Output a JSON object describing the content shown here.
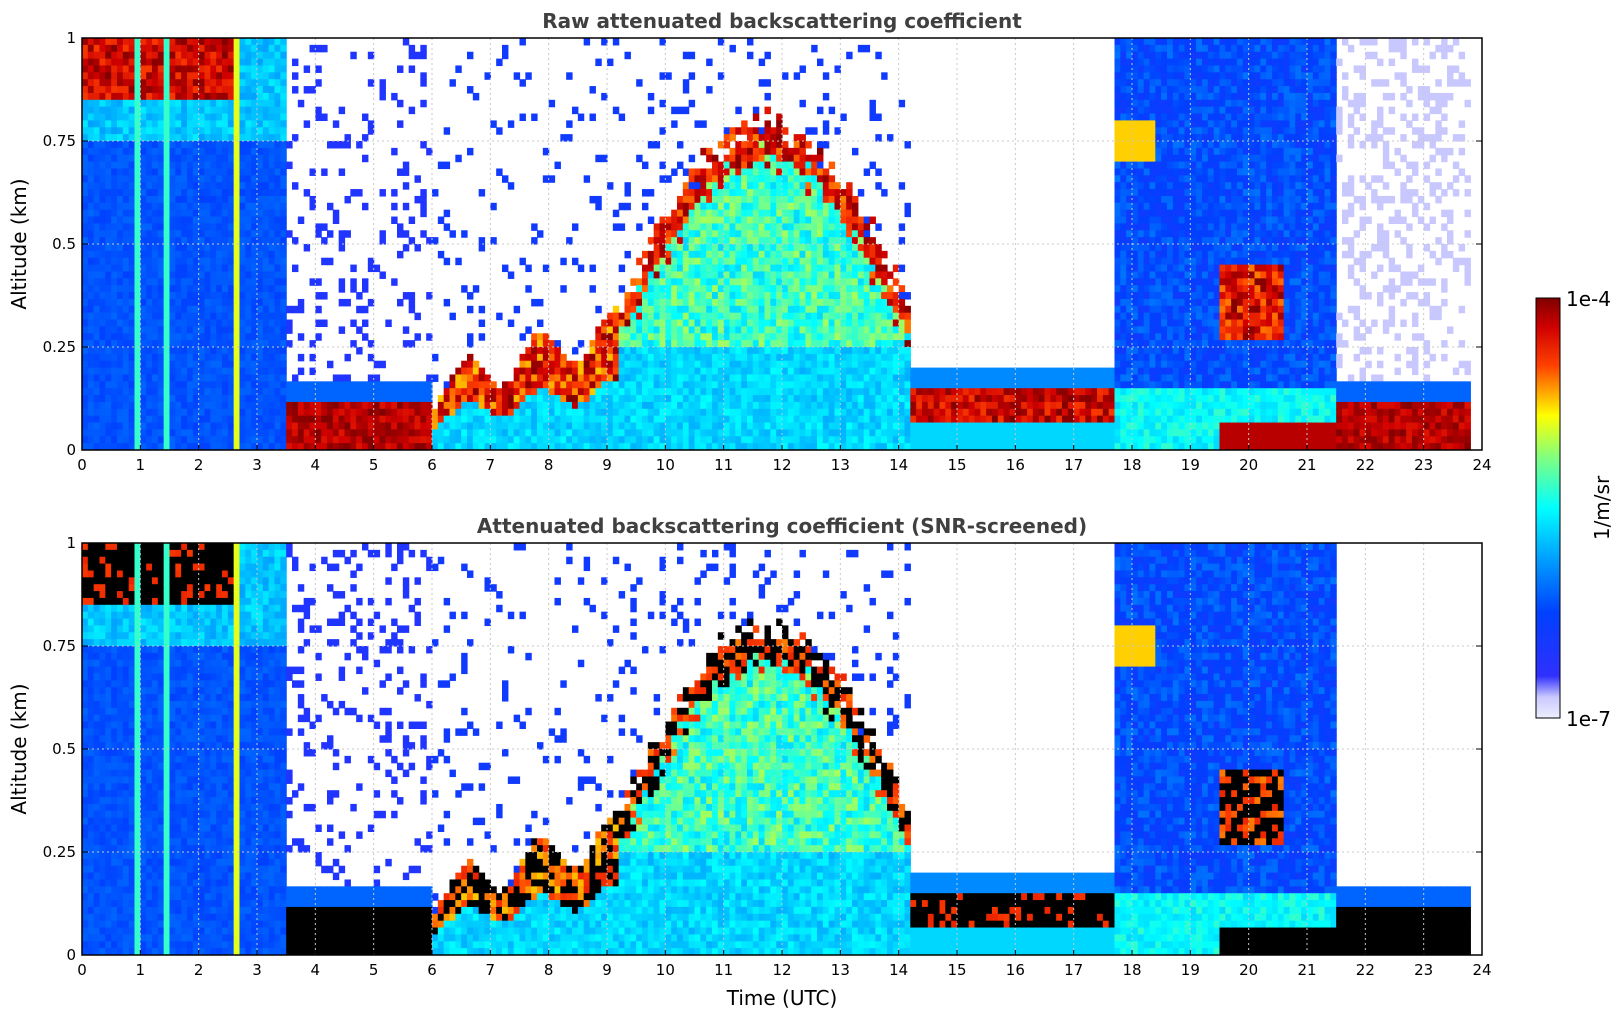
{
  "chart_data": [
    {
      "type": "heatmap",
      "title": "Raw attenuated backscattering coefficient",
      "xlabel": "",
      "ylabel": "Altitude (km)",
      "xlim": [
        0,
        24
      ],
      "ylim": [
        0,
        1
      ],
      "x_ticks": [
        "0",
        "1",
        "2",
        "3",
        "4",
        "5",
        "6",
        "7",
        "8",
        "9",
        "10",
        "11",
        "12",
        "13",
        "14",
        "15",
        "16",
        "17",
        "18",
        "19",
        "20",
        "21",
        "22",
        "23",
        "24"
      ],
      "y_ticks": [
        "0",
        "0.25",
        "0.5",
        "0.75",
        "1"
      ],
      "grid": true,
      "colorscale": "jet",
      "segments_hours": [
        {
          "t0": 0.0,
          "t1": 3.55,
          "regime": "full-column aerosol, strong returns near top (>0.85 km) until ~2.6 UTC"
        },
        {
          "t0": 3.55,
          "t1": 6.0,
          "regime": "strong layer below ~0.15 km, sparse signal above"
        },
        {
          "t0": 6.0,
          "t1": 9.2,
          "regime": "layer rising from ~0.15 km to ~0.3 km"
        },
        {
          "t0": 9.2,
          "t1": 14.2,
          "regime": "deep boundary layer up to ~0.8 km, strong near 0.55 km at ~12 UTC"
        },
        {
          "t0": 14.2,
          "t1": 17.7,
          "regime": "strong layer 0.05-0.15 km, clear above"
        },
        {
          "t0": 17.7,
          "t1": 21.5,
          "regime": "column signal up to 1 km, layer near 0.3-0.45 km around 20 UTC"
        },
        {
          "t0": 21.5,
          "t1": 23.8,
          "regime": "strong layer below 0.15 km, weak above"
        }
      ],
      "colorbar": {
        "min_label": "1e-7",
        "max_label": "1e-4",
        "unit": "1/m/sr",
        "scale": "log"
      }
    },
    {
      "type": "heatmap",
      "title": "Attenuated backscattering coefficient (SNR-screened)",
      "xlabel": "Time (UTC)",
      "ylabel": "Altitude (km)",
      "xlim": [
        0,
        24
      ],
      "ylim": [
        0,
        1
      ],
      "x_ticks": [
        "0",
        "1",
        "2",
        "3",
        "4",
        "5",
        "6",
        "7",
        "8",
        "9",
        "10",
        "11",
        "12",
        "13",
        "14",
        "15",
        "16",
        "17",
        "18",
        "19",
        "20",
        "21",
        "22",
        "23",
        "24"
      ],
      "y_ticks": [
        "0",
        "0.25",
        "0.5",
        "0.75",
        "1"
      ],
      "grid": true,
      "colorscale": "jet",
      "saturated_color": "#000000",
      "colorbar": {
        "min_label": "1e-7",
        "max_label": "1e-4",
        "unit": "1/m/sr",
        "scale": "log"
      }
    }
  ],
  "colors": {
    "title": "#404040",
    "low": "#e8e8ff",
    "blue": "#0a28ff",
    "cyan": "#00ffff",
    "yellow": "#ffff00",
    "red": "#ff0000",
    "dark_red": "#800000",
    "saturated": "#000000"
  }
}
